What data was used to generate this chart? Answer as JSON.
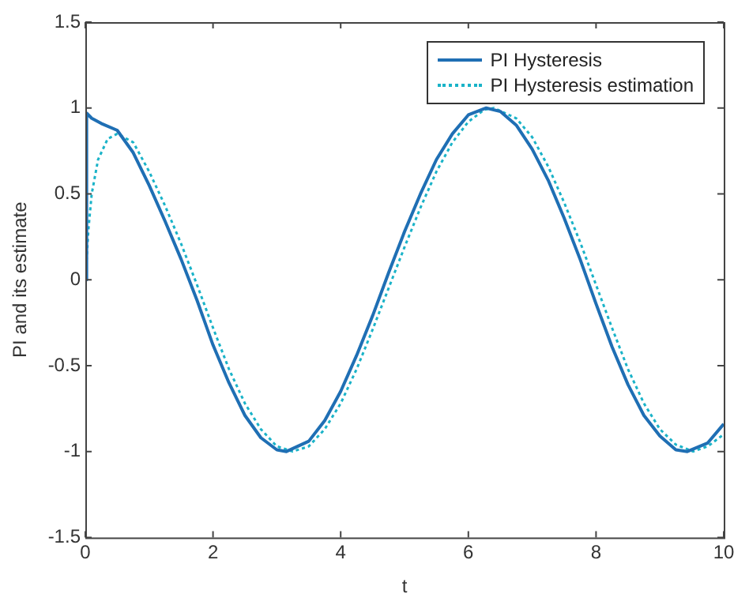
{
  "chart_data": {
    "type": "line",
    "xlabel": "t",
    "ylabel": "PI and its estimate",
    "xlim": [
      0,
      10
    ],
    "xticks": [
      0,
      2,
      4,
      6,
      8,
      10
    ],
    "ylim": [
      -1.5,
      1.5
    ],
    "yticks": [
      -1.5,
      -1,
      -0.5,
      0,
      0.5,
      1,
      1.5
    ],
    "grid": false,
    "legend": "top right",
    "marker": "none",
    "series": [
      {
        "name": "PI Hysteresis",
        "color": "#1f6fb4",
        "line_style": "solid",
        "x": [
          0,
          0.02,
          0.1,
          0.25,
          0.5,
          0.75,
          1,
          1.25,
          1.5,
          1.75,
          2,
          2.25,
          2.5,
          2.75,
          3,
          3.15,
          3.5,
          3.75,
          4,
          4.25,
          4.5,
          4.75,
          5,
          5.25,
          5.5,
          5.75,
          6,
          6.28,
          6.5,
          6.75,
          7,
          7.25,
          7.5,
          7.75,
          8,
          8.25,
          8.5,
          8.75,
          9,
          9.25,
          9.43,
          9.75,
          10
        ],
        "values": [
          0,
          0.97,
          0.94,
          0.91,
          0.87,
          0.74,
          0.55,
          0.34,
          0.12,
          -0.12,
          -0.38,
          -0.6,
          -0.79,
          -0.92,
          -0.99,
          -1,
          -0.94,
          -0.82,
          -0.65,
          -0.44,
          -0.21,
          0.04,
          0.28,
          0.5,
          0.7,
          0.85,
          0.96,
          1,
          0.98,
          0.9,
          0.76,
          0.58,
          0.36,
          0.12,
          -0.14,
          -0.39,
          -0.61,
          -0.79,
          -0.91,
          -0.99,
          -1,
          -0.95,
          -0.84
        ]
      },
      {
        "name": "PI Hysteresis estimation",
        "color": "#1ab3c8",
        "line_style": "dotted",
        "x": [
          0,
          0.05,
          0.1,
          0.2,
          0.35,
          0.5,
          0.75,
          1,
          1.25,
          1.5,
          1.75,
          2,
          2.25,
          2.5,
          2.75,
          3,
          3.25,
          3.5,
          3.75,
          4,
          4.25,
          4.5,
          4.75,
          5,
          5.25,
          5.5,
          5.75,
          6,
          6.25,
          6.4,
          6.75,
          7,
          7.25,
          7.5,
          7.75,
          8,
          8.25,
          8.5,
          8.75,
          9,
          9.25,
          9.52,
          9.75,
          10
        ],
        "values": [
          0,
          0.3,
          0.5,
          0.7,
          0.82,
          0.85,
          0.8,
          0.63,
          0.43,
          0.21,
          -0.03,
          -0.28,
          -0.52,
          -0.72,
          -0.87,
          -0.97,
          -1,
          -0.97,
          -0.87,
          -0.72,
          -0.52,
          -0.29,
          -0.05,
          0.19,
          0.42,
          0.63,
          0.8,
          0.92,
          0.99,
          1,
          0.94,
          0.83,
          0.66,
          0.45,
          0.22,
          -0.03,
          -0.28,
          -0.52,
          -0.72,
          -0.87,
          -0.96,
          -1,
          -0.97,
          -0.9
        ]
      }
    ]
  }
}
